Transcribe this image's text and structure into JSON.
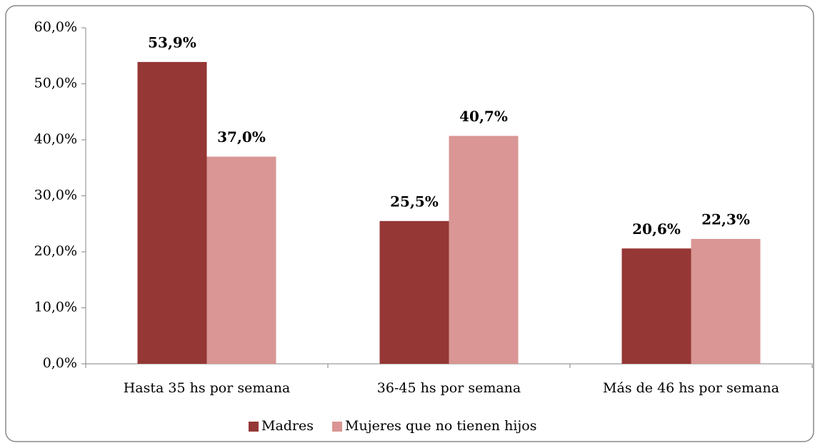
{
  "chart_data": {
    "type": "bar",
    "categories": [
      "Hasta 35 hs por semana",
      "36-45 hs por semana",
      "Más de 46 hs por semana"
    ],
    "series": [
      {
        "name": "Madres",
        "color": "#953735",
        "values": [
          53.9,
          25.5,
          20.6
        ],
        "value_labels": [
          "53,9%",
          "25,5%",
          "20,6%"
        ]
      },
      {
        "name": "Mujeres que no tienen hijos",
        "color": "#d99694",
        "values": [
          37.0,
          40.7,
          22.3
        ],
        "value_labels": [
          "37,0%",
          "40,7%",
          "22,3%"
        ]
      }
    ],
    "ylim": [
      0,
      60
    ],
    "yticks": [
      {
        "value": 0,
        "label": "0,0%"
      },
      {
        "value": 10,
        "label": "10,0%"
      },
      {
        "value": 20,
        "label": "20,0%"
      },
      {
        "value": 30,
        "label": "30,0%"
      },
      {
        "value": 40,
        "label": "40,0%"
      },
      {
        "value": 50,
        "label": "50,0%"
      },
      {
        "value": 60,
        "label": "60,0%"
      }
    ],
    "grid": false,
    "legend": "bottom"
  }
}
